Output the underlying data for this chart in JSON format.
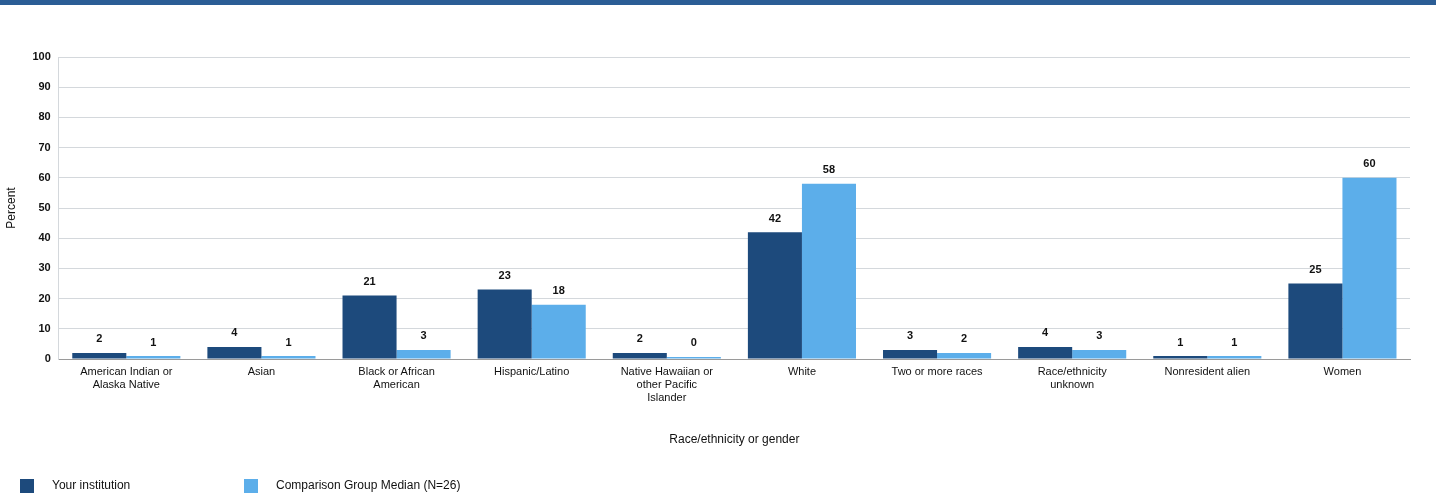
{
  "chart_data": {
    "type": "bar",
    "categories": [
      "American Indian or Alaska Native",
      "Asian",
      "Black or African American",
      "Hispanic/Latino",
      "Native Hawaiian or other Pacific Islander",
      "White",
      "Two or more races",
      "Race/ethnicity unknown",
      "Nonresident alien",
      "Women"
    ],
    "series": [
      {
        "name": "Your institution",
        "color": "#1d4a7c",
        "values": [
          2,
          4,
          21,
          23,
          2,
          42,
          3,
          4,
          1,
          25
        ]
      },
      {
        "name": "Comparison Group Median (N=26)",
        "color": "#5caeea",
        "values": [
          1,
          1,
          3,
          18,
          0,
          58,
          2,
          3,
          1,
          60
        ]
      }
    ],
    "xlabel": "Race/ethnicity or gender",
    "ylabel": "Percent",
    "ylim": [
      0,
      100
    ],
    "yticks": [
      0,
      10,
      20,
      30,
      40,
      50,
      60,
      70,
      80,
      90,
      100
    ],
    "grid": "y",
    "legend": "bottom left",
    "data_labels": true
  }
}
